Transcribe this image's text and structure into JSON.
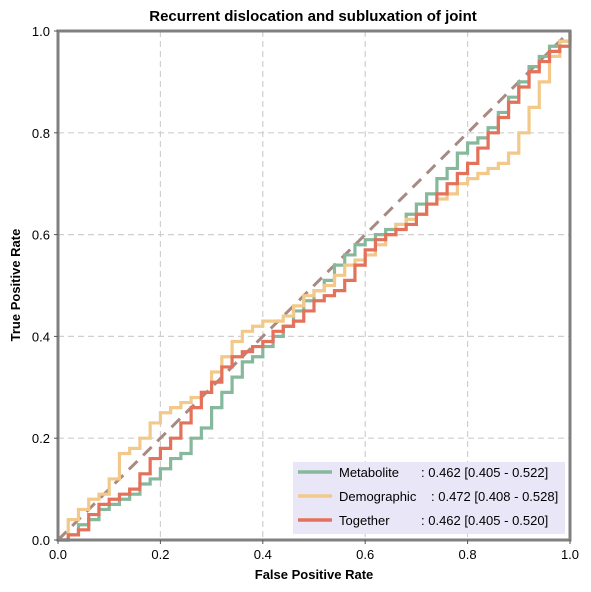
{
  "chart_data": {
    "type": "line",
    "title": "Recurrent dislocation and subluxation of joint",
    "xlabel": "False Positive Rate",
    "ylabel": "True Positive Rate",
    "xlim": [
      0,
      1
    ],
    "ylim": [
      0,
      1
    ],
    "xticks": [
      "0.0",
      "0.2",
      "0.4",
      "0.6",
      "0.8",
      "1.0"
    ],
    "yticks": [
      "0.0",
      "0.2",
      "0.4",
      "0.6",
      "0.8",
      "1.0"
    ],
    "grid": true,
    "legend_position": "bottom-right",
    "chance_line": {
      "x": [
        0,
        1
      ],
      "y": [
        0,
        1
      ],
      "color": "#A98A82"
    },
    "series": [
      {
        "name": "Metabolite",
        "auc_text": ": 0.462 [0.405 - 0.522]",
        "color": "#86B89C",
        "x": [
          0,
          0.02,
          0.04,
          0.06,
          0.08,
          0.1,
          0.12,
          0.14,
          0.16,
          0.18,
          0.2,
          0.22,
          0.24,
          0.26,
          0.28,
          0.3,
          0.32,
          0.34,
          0.36,
          0.38,
          0.4,
          0.42,
          0.44,
          0.46,
          0.48,
          0.5,
          0.52,
          0.54,
          0.56,
          0.58,
          0.6,
          0.62,
          0.64,
          0.66,
          0.68,
          0.7,
          0.72,
          0.74,
          0.76,
          0.78,
          0.8,
          0.82,
          0.84,
          0.86,
          0.88,
          0.9,
          0.92,
          0.94,
          0.96,
          0.98,
          1.0
        ],
        "y": [
          0,
          0.01,
          0.03,
          0.04,
          0.06,
          0.07,
          0.08,
          0.09,
          0.11,
          0.12,
          0.14,
          0.16,
          0.17,
          0.2,
          0.22,
          0.26,
          0.29,
          0.32,
          0.35,
          0.36,
          0.38,
          0.4,
          0.42,
          0.45,
          0.47,
          0.49,
          0.51,
          0.54,
          0.56,
          0.58,
          0.59,
          0.6,
          0.61,
          0.62,
          0.64,
          0.66,
          0.68,
          0.71,
          0.73,
          0.76,
          0.78,
          0.79,
          0.81,
          0.84,
          0.87,
          0.9,
          0.93,
          0.95,
          0.97,
          0.98,
          1.0
        ]
      },
      {
        "name": "Demographic",
        "auc_text": ": 0.472 [0.408 - 0.528]",
        "color": "#F2C98A",
        "x": [
          0,
          0.02,
          0.04,
          0.06,
          0.08,
          0.1,
          0.12,
          0.14,
          0.16,
          0.18,
          0.2,
          0.22,
          0.24,
          0.26,
          0.28,
          0.3,
          0.32,
          0.34,
          0.36,
          0.38,
          0.4,
          0.42,
          0.44,
          0.46,
          0.48,
          0.5,
          0.52,
          0.54,
          0.56,
          0.58,
          0.6,
          0.62,
          0.64,
          0.66,
          0.68,
          0.7,
          0.72,
          0.74,
          0.76,
          0.78,
          0.8,
          0.82,
          0.84,
          0.86,
          0.88,
          0.9,
          0.92,
          0.94,
          0.96,
          0.98,
          1.0
        ],
        "y": [
          0,
          0.04,
          0.06,
          0.08,
          0.09,
          0.12,
          0.17,
          0.18,
          0.2,
          0.23,
          0.25,
          0.26,
          0.27,
          0.28,
          0.29,
          0.33,
          0.36,
          0.39,
          0.41,
          0.42,
          0.43,
          0.43,
          0.44,
          0.46,
          0.48,
          0.49,
          0.5,
          0.52,
          0.54,
          0.55,
          0.56,
          0.58,
          0.6,
          0.62,
          0.63,
          0.64,
          0.66,
          0.67,
          0.68,
          0.7,
          0.71,
          0.72,
          0.73,
          0.74,
          0.76,
          0.8,
          0.85,
          0.9,
          0.95,
          0.98,
          1.0
        ]
      },
      {
        "name": "Together",
        "auc_text": ": 0.462 [0.405 - 0.520]",
        "color": "#E4715A",
        "x": [
          0,
          0.02,
          0.04,
          0.06,
          0.08,
          0.1,
          0.12,
          0.14,
          0.16,
          0.18,
          0.2,
          0.22,
          0.24,
          0.26,
          0.28,
          0.3,
          0.32,
          0.34,
          0.36,
          0.38,
          0.4,
          0.42,
          0.44,
          0.46,
          0.48,
          0.5,
          0.52,
          0.54,
          0.56,
          0.58,
          0.6,
          0.62,
          0.64,
          0.66,
          0.68,
          0.7,
          0.72,
          0.74,
          0.76,
          0.78,
          0.8,
          0.82,
          0.84,
          0.86,
          0.88,
          0.9,
          0.92,
          0.94,
          0.96,
          0.98,
          1.0
        ],
        "y": [
          0,
          0.01,
          0.02,
          0.05,
          0.07,
          0.08,
          0.09,
          0.1,
          0.13,
          0.16,
          0.18,
          0.2,
          0.23,
          0.26,
          0.29,
          0.31,
          0.34,
          0.36,
          0.37,
          0.38,
          0.39,
          0.41,
          0.42,
          0.43,
          0.45,
          0.47,
          0.48,
          0.49,
          0.51,
          0.54,
          0.57,
          0.59,
          0.6,
          0.61,
          0.62,
          0.64,
          0.66,
          0.68,
          0.7,
          0.72,
          0.74,
          0.77,
          0.8,
          0.83,
          0.86,
          0.89,
          0.92,
          0.94,
          0.96,
          0.97,
          1.0
        ]
      }
    ]
  }
}
